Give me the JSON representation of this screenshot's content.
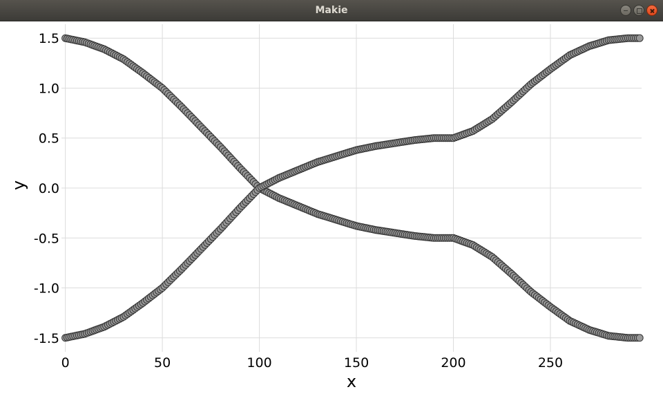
{
  "window": {
    "title": "Makie"
  },
  "chart_data": {
    "type": "scatter",
    "xlabel": "x",
    "ylabel": "y",
    "xlim": [
      -2,
      297
    ],
    "ylim": [
      -1.64,
      1.64
    ],
    "x_ticks": [
      0,
      50,
      100,
      150,
      200,
      250
    ],
    "x_tick_labels": [
      "0",
      "50",
      "100",
      "150",
      "200",
      "250"
    ],
    "y_ticks": [
      1.5,
      1.0,
      0.5,
      0.0,
      -0.5,
      -1.0,
      -1.5
    ],
    "y_tick_labels": [
      "1.5",
      "1.0",
      "0.5",
      "0.0",
      "-0.5",
      "-1.0",
      "-1.5"
    ],
    "grid": true,
    "marker": {
      "fill": "#999999",
      "stroke": "#333333"
    },
    "series": [
      {
        "points": [
          [
            0,
            1.5
          ],
          [
            10,
            1.46
          ],
          [
            20,
            1.39
          ],
          [
            30,
            1.29
          ],
          [
            40,
            1.15
          ],
          [
            50,
            1.0
          ],
          [
            60,
            0.81
          ],
          [
            70,
            0.61
          ],
          [
            80,
            0.41
          ],
          [
            90,
            0.2
          ],
          [
            100,
            0.0
          ],
          [
            110,
            -0.1
          ],
          [
            120,
            -0.18
          ],
          [
            130,
            -0.26
          ],
          [
            140,
            -0.32
          ],
          [
            150,
            -0.38
          ],
          [
            160,
            -0.42
          ],
          [
            170,
            -0.45
          ],
          [
            180,
            -0.48
          ],
          [
            190,
            -0.5
          ],
          [
            200,
            -0.5
          ],
          [
            210,
            -0.57
          ],
          [
            220,
            -0.69
          ],
          [
            230,
            -0.86
          ],
          [
            240,
            -1.04
          ],
          [
            250,
            -1.19
          ],
          [
            260,
            -1.33
          ],
          [
            270,
            -1.42
          ],
          [
            280,
            -1.48
          ],
          [
            290,
            -1.5
          ],
          [
            296,
            -1.5
          ]
        ]
      },
      {
        "points": [
          [
            0,
            -1.5
          ],
          [
            10,
            -1.46
          ],
          [
            20,
            -1.39
          ],
          [
            30,
            -1.29
          ],
          [
            40,
            -1.15
          ],
          [
            50,
            -1.0
          ],
          [
            60,
            -0.81
          ],
          [
            70,
            -0.61
          ],
          [
            80,
            -0.41
          ],
          [
            90,
            -0.2
          ],
          [
            100,
            0.0
          ],
          [
            110,
            0.1
          ],
          [
            120,
            0.18
          ],
          [
            130,
            0.26
          ],
          [
            140,
            0.32
          ],
          [
            150,
            0.38
          ],
          [
            160,
            0.42
          ],
          [
            170,
            0.45
          ],
          [
            180,
            0.48
          ],
          [
            190,
            0.5
          ],
          [
            200,
            0.5
          ],
          [
            210,
            0.57
          ],
          [
            220,
            0.69
          ],
          [
            230,
            0.86
          ],
          [
            240,
            1.04
          ],
          [
            250,
            1.19
          ],
          [
            260,
            1.33
          ],
          [
            270,
            1.42
          ],
          [
            280,
            1.48
          ],
          [
            290,
            1.5
          ],
          [
            296,
            1.5
          ]
        ]
      }
    ]
  }
}
